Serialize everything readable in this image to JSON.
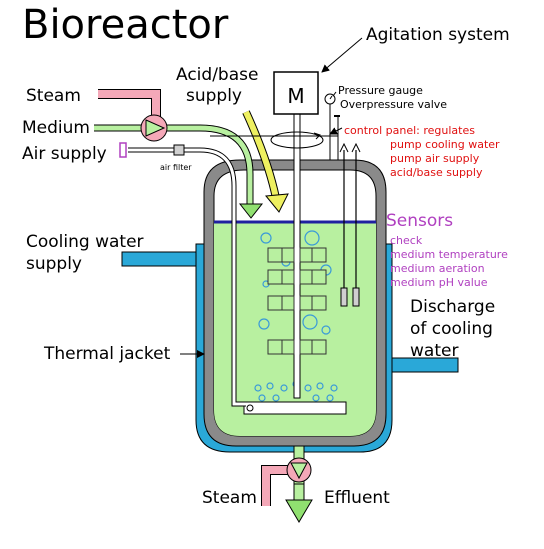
{
  "title": "Bioreactor",
  "labels": {
    "agitation_system": "Agitation system",
    "acid_base_line1": "Acid/base",
    "acid_base_line2": "supply",
    "motor": "M",
    "pressure_gauge": "Pressure gauge",
    "overpressure_valve": "Overpressure valve",
    "steam_top": "Steam",
    "medium": "Medium",
    "air_supply": "Air supply",
    "air_filter": "air filter",
    "cooling_supply_line1": "Cooling water",
    "cooling_supply_line2": "supply",
    "thermal_jacket": "Thermal jacket",
    "discharge_line1": "Discharge",
    "discharge_line2": "of cooling",
    "discharge_line3": "water",
    "steam_bottom": "Steam",
    "effluent": "Effluent"
  },
  "control_panel": [
    "control panel: regulates",
    "pump cooling water",
    "pump air supply",
    "acid/base supply"
  ],
  "sensors": {
    "heading": "Sensors",
    "items": [
      "check",
      "medium temperature",
      "medium aeration",
      "medium pH value"
    ]
  },
  "colors": {
    "culture_medium": "#b8f0a0",
    "cooling_water": "#2aa8d8",
    "steam_pipe": "#f4a8b8",
    "acid_base": "#eef060",
    "vessel_wall": "#8a8a8a",
    "control_text": "#e01010",
    "sensor_text": "#b040c0",
    "liquid_surface": "#2020a0",
    "flow_arrow": "#90e070"
  }
}
